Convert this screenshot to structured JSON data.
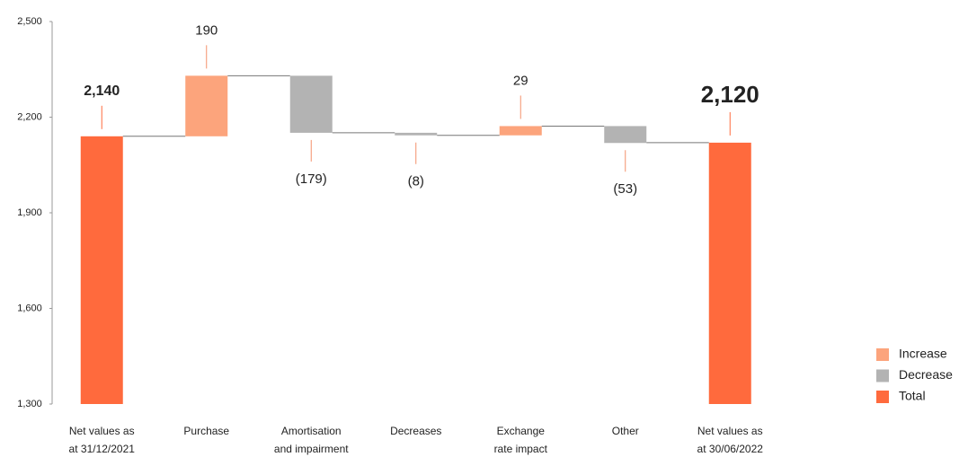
{
  "chart_data": {
    "type": "waterfall",
    "categories": [
      [
        "Net values as",
        "at 31/12/2021"
      ],
      [
        "Purchase"
      ],
      [
        "Amortisation",
        "and impairment"
      ],
      [
        "Decreases"
      ],
      [
        "Exchange",
        "rate impact"
      ],
      [
        "Other"
      ],
      [
        "Net values as",
        "at 30/06/2022"
      ]
    ],
    "values": [
      2140,
      190,
      -179,
      -8,
      29,
      -53,
      2120
    ],
    "value_labels": [
      "2,140",
      "190",
      "(179)",
      "(8)",
      "29",
      "(53)",
      "2,120"
    ],
    "ylim": [
      1300,
      2500
    ],
    "yticks": [
      {
        "value": 1300,
        "label": "1,300"
      },
      {
        "value": 1600,
        "label": "1,600"
      },
      {
        "value": 1900,
        "label": "1,900"
      },
      {
        "value": 2200,
        "label": "2,200"
      },
      {
        "value": 2500,
        "label": "2,500"
      }
    ],
    "legend": [
      {
        "name": "Increase",
        "color": "#fca47c"
      },
      {
        "name": "Decrease",
        "color": "#b3b3b3"
      },
      {
        "name": "Total",
        "color": "#ff6a3d"
      }
    ]
  }
}
